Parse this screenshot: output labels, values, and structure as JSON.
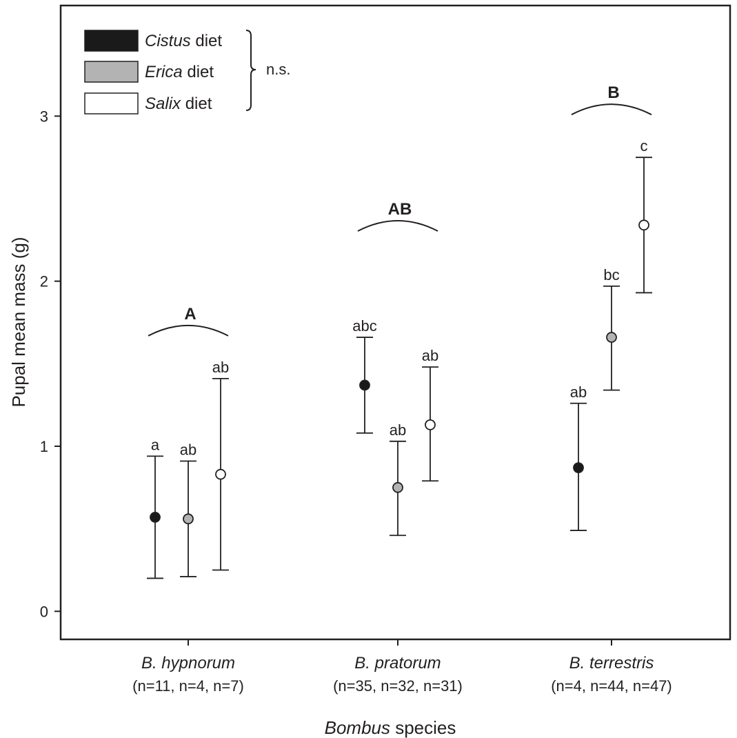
{
  "chart_data": {
    "type": "scatter",
    "xlabel_italic": "Bombus",
    "xlabel_rest": " species",
    "ylabel": "Pupal mean mass (g)",
    "ylim": [
      -0.17,
      3.67
    ],
    "yticks": [
      0,
      1,
      2,
      3
    ],
    "ytick_labels": [
      "0",
      "1",
      "2",
      "3"
    ],
    "grid": false,
    "legend_position": "top-left",
    "categories": [
      {
        "name": "B. hypnorum",
        "n": "(n=11, n=4, n=7)",
        "group_letter": "A"
      },
      {
        "name": "B. pratorum",
        "n": "(n=35, n=32, n=31)",
        "group_letter": "AB"
      },
      {
        "name": "B. terrestris",
        "n": "(n=4, n=44, n=47)",
        "group_letter": "B"
      }
    ],
    "series": [
      {
        "name_italic": "Cistus",
        "name_rest": " diet",
        "color": "#1a1a1a",
        "values": [
          0.57,
          1.37,
          0.87
        ],
        "err_low": [
          0.2,
          1.08,
          0.49
        ],
        "err_high": [
          0.94,
          1.66,
          1.26
        ],
        "sig": [
          "a",
          "abc",
          "ab"
        ]
      },
      {
        "name_italic": "Erica",
        "name_rest": " diet",
        "color": "#b3b3b3",
        "values": [
          0.56,
          0.75,
          1.66
        ],
        "err_low": [
          0.21,
          0.46,
          1.34
        ],
        "err_high": [
          0.91,
          1.03,
          1.97
        ],
        "sig": [
          "ab",
          "ab",
          "bc"
        ]
      },
      {
        "name_italic": "Salix",
        "name_rest": " diet",
        "color": "#ffffff",
        "values": [
          0.83,
          1.13,
          2.34
        ],
        "err_low": [
          0.25,
          0.79,
          1.93
        ],
        "err_high": [
          1.41,
          1.48,
          2.75
        ],
        "sig": [
          "ab",
          "ab",
          "c"
        ]
      }
    ],
    "legend_note": "n.s."
  }
}
